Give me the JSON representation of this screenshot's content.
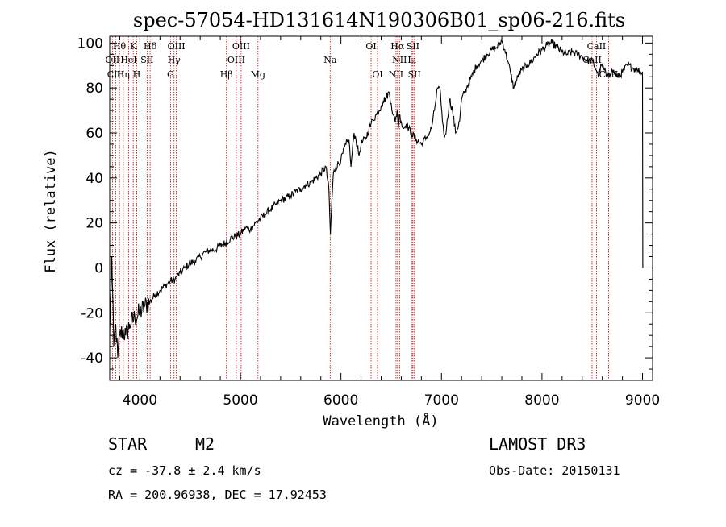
{
  "chart_data": {
    "type": "line",
    "title": "spec-57054-HD131614N190306B01_sp06-216.fits",
    "xlabel": "Wavelength (Å)",
    "ylabel": "Flux (relative)",
    "xlim": [
      3700,
      9100
    ],
    "ylim": [
      -50,
      103
    ],
    "xticks": [
      4000,
      5000,
      6000,
      7000,
      8000,
      9000
    ],
    "yticks": [
      -40,
      -20,
      0,
      20,
      40,
      60,
      80,
      100
    ],
    "grid": false,
    "series": [
      {
        "x": [
          3700,
          3720,
          3740,
          3760,
          3780,
          3800,
          3830,
          3860,
          3900,
          3950,
          4000,
          4050,
          4100,
          4150,
          4200,
          4250,
          4300,
          4350,
          4400,
          4450,
          4500,
          4550,
          4600,
          4650,
          4700,
          4750,
          4800,
          4850,
          4900,
          4950,
          5000,
          5050,
          5100,
          5150,
          5200,
          5250,
          5300,
          5350,
          5400,
          5450,
          5500,
          5550,
          5600,
          5650,
          5700,
          5750,
          5800,
          5850,
          5880,
          5895,
          5910,
          5925,
          5950,
          6000,
          6050,
          6080,
          6100,
          6130,
          6150,
          6180,
          6200,
          6250,
          6280,
          6300,
          6320,
          6350,
          6380,
          6400,
          6420,
          6450,
          6480,
          6500,
          6520,
          6540,
          6560,
          6570,
          6580,
          6600,
          6620,
          6650,
          6700,
          6750,
          6800,
          6850,
          6880,
          6900,
          6930,
          6960,
          6990,
          7010,
          7030,
          7050,
          7080,
          7110,
          7140,
          7180,
          7200,
          7250,
          7300,
          7350,
          7400,
          7450,
          7500,
          7550,
          7600,
          7630,
          7660,
          7690,
          7720,
          7760,
          7800,
          7850,
          7900,
          7950,
          8000,
          8050,
          8100,
          8150,
          8200,
          8250,
          8300,
          8350,
          8400,
          8450,
          8500,
          8540,
          8560,
          8590,
          8620,
          8640,
          8660,
          8680,
          8700,
          8750,
          8800,
          8850,
          8900,
          8950,
          9000,
          9003
        ],
        "values": [
          -30,
          5,
          -35,
          -25,
          -40,
          -30,
          -28,
          -30,
          -25,
          -22,
          -20,
          -17,
          -15,
          -12,
          -10,
          -8,
          -6,
          -5,
          -2,
          0,
          2,
          3,
          5,
          7,
          8,
          8,
          10,
          11,
          13,
          14,
          15,
          18,
          17,
          20,
          22,
          24,
          26,
          28,
          30,
          31,
          32,
          34,
          35,
          37,
          38,
          40,
          42,
          45,
          35,
          15,
          30,
          42,
          45,
          48,
          55,
          57,
          45,
          60,
          57,
          50,
          55,
          58,
          62,
          64,
          66,
          68,
          70,
          72,
          74,
          76,
          78,
          73,
          68,
          65,
          70,
          62,
          68,
          65,
          62,
          64,
          60,
          57,
          55,
          58,
          60,
          62,
          70,
          80,
          78,
          65,
          58,
          62,
          75,
          70,
          60,
          65,
          75,
          80,
          85,
          90,
          92,
          95,
          97,
          98,
          101,
          97,
          92,
          86,
          80,
          85,
          88,
          90,
          92,
          95,
          97,
          99,
          100,
          98,
          96,
          95,
          96,
          95,
          94,
          92,
          92,
          88,
          85,
          90,
          88,
          85,
          87,
          86,
          88,
          85,
          87,
          90,
          89,
          88,
          87,
          0
        ]
      }
    ],
    "lines": [
      {
        "label": "Hθ",
        "wave": 3797
      },
      {
        "label": "OII",
        "wave": 3727
      },
      {
        "label": "CIII",
        "wave": 3760
      },
      {
        "label": "K",
        "wave": 3934
      },
      {
        "label": "H",
        "wave": 3969
      },
      {
        "label": "HeI",
        "wave": 3889
      },
      {
        "label": "Hη",
        "wave": 3835
      },
      {
        "label": "SII",
        "wave": 4072
      },
      {
        "label": "Hδ",
        "wave": 4102
      },
      {
        "label": "OIII",
        "wave": 4363
      },
      {
        "label": "Hγ",
        "wave": 4340
      },
      {
        "label": "G",
        "wave": 4305
      },
      {
        "label": "Hβ",
        "wave": 4861
      },
      {
        "label": "OIII",
        "wave": 4959
      },
      {
        "label": "OIII",
        "wave": 5007
      },
      {
        "label": "Mg",
        "wave": 5175
      },
      {
        "label": "Na",
        "wave": 5893
      },
      {
        "label": "OI",
        "wave": 6300
      },
      {
        "label": "OI",
        "wave": 6364
      },
      {
        "label": "Hα",
        "wave": 6563
      },
      {
        "label": "NII",
        "wave": 6548
      },
      {
        "label": "NII",
        "wave": 6583
      },
      {
        "label": "SII",
        "wave": 6716
      },
      {
        "label": "SII",
        "wave": 6731
      },
      {
        "label": "Li",
        "wave": 6707
      },
      {
        "label": "CaII",
        "wave": 8498
      },
      {
        "label": "CaII",
        "wave": 8542
      },
      {
        "label": "CaII",
        "wave": 8662
      }
    ],
    "annotation_rows": [
      [
        {
          "text": "Hθ",
          "wave": 3797
        },
        {
          "text": "K",
          "wave": 3934
        },
        {
          "text": "Hδ",
          "wave": 4102
        },
        {
          "text": "OIII",
          "wave": 4363
        },
        {
          "text": "OIII",
          "wave": 5007
        },
        {
          "text": "OI",
          "wave": 6300
        },
        {
          "text": "Hα",
          "wave": 6563
        },
        {
          "text": "SII",
          "wave": 6716
        },
        {
          "text": "CaII",
          "wave": 8542
        }
      ],
      [
        {
          "text": "OII",
          "wave": 3727
        },
        {
          "text": "HeI",
          "wave": 3889
        },
        {
          "text": "SII",
          "wave": 4072
        },
        {
          "text": "Hγ",
          "wave": 4340
        },
        {
          "text": "OIII",
          "wave": 4959
        },
        {
          "text": "Na",
          "wave": 5893
        },
        {
          "text": "NII",
          "wave": 6583
        },
        {
          "text": "Li",
          "wave": 6707
        },
        {
          "text": "CaII",
          "wave": 8498
        }
      ],
      [
        {
          "text": "CIII",
          "wave": 3760
        },
        {
          "text": "Hη",
          "wave": 3835
        },
        {
          "text": "H",
          "wave": 3969
        },
        {
          "text": "G",
          "wave": 4305
        },
        {
          "text": "Hβ",
          "wave": 4861
        },
        {
          "text": "Mg",
          "wave": 5175
        },
        {
          "text": "OI",
          "wave": 6364
        },
        {
          "text": "NII",
          "wave": 6548
        },
        {
          "text": "SII",
          "wave": 6731
        },
        {
          "text": "CaII",
          "wave": 8662
        }
      ]
    ]
  },
  "info": {
    "class_label": "STAR",
    "subclass": "M2",
    "survey": "LAMOST DR3",
    "cz": "cz = -37.8 ± 2.4 km/s",
    "obs_date": "Obs-Date: 20150131",
    "coords": "RA = 200.96938, DEC =  17.92453"
  },
  "colors": {
    "spectrum": "#000000",
    "line_marker": "#cc0000"
  }
}
